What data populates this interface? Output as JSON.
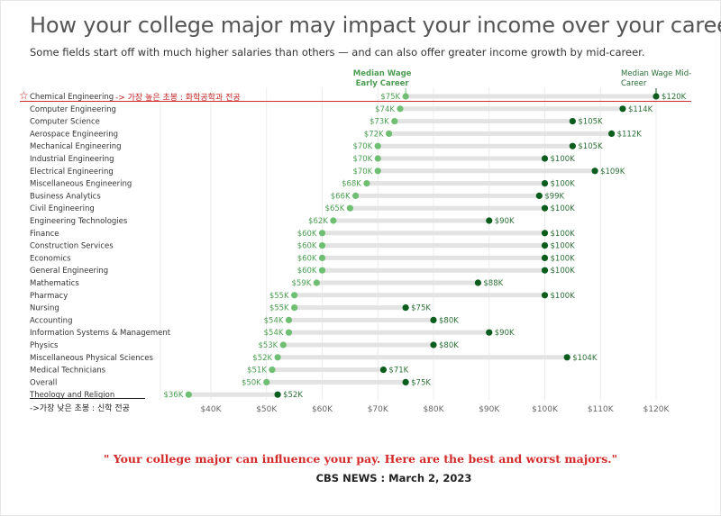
{
  "title": "How your college major may impact your income over your career",
  "subtitle": "Some fields start off with much higher salaries than others — and can also offer greater income growth by mid-career.",
  "legend": {
    "early_line1": "Median Wage",
    "early_line2": "Early Career",
    "mid_line1": "Median Wage Mid-",
    "mid_line2": "Career"
  },
  "annotations": {
    "top": "-> 가장 높은 초봉 : 화학공학과 전공",
    "bottom": "->가장 낮은 초봉 : 신학 전공",
    "star": "☆"
  },
  "headline": "\" Your college major can influence your pay. Here are the best and worst majors.\"",
  "source": "CBS NEWS : March 2, 2023",
  "colors": {
    "early": "#6fbf73",
    "mid": "#0b5d1e",
    "early_label": "#4a9d50",
    "mid_label": "#2b6e36",
    "bar": "#e3e3e3",
    "highlight": "#d03030"
  },
  "chart_data": {
    "type": "dumbbell",
    "x_ticks": [
      "$40K",
      "$50K",
      "$60K",
      "$70K",
      "$80K",
      "$90K",
      "$100K",
      "$110K",
      "$120K"
    ],
    "xlim": [
      40,
      120
    ],
    "unit": "thousands USD",
    "grid": true,
    "series": [
      {
        "name": "Median Wage Early Career"
      },
      {
        "name": "Median Wage Mid-Career"
      }
    ],
    "rows": [
      {
        "major": "Chemical Engineering",
        "early": 75,
        "mid": 120,
        "early_label": "$75K",
        "mid_label": "$120K"
      },
      {
        "major": "Computer Engineering",
        "early": 74,
        "mid": 114,
        "early_label": "$74K",
        "mid_label": "$114K"
      },
      {
        "major": "Computer Science",
        "early": 73,
        "mid": 105,
        "early_label": "$73K",
        "mid_label": "$105K"
      },
      {
        "major": "Aerospace Engineering",
        "early": 72,
        "mid": 112,
        "early_label": "$72K",
        "mid_label": "$112K"
      },
      {
        "major": "Mechanical Engineering",
        "early": 70,
        "mid": 105,
        "early_label": "$70K",
        "mid_label": "$105K"
      },
      {
        "major": "Industrial Engineering",
        "early": 70,
        "mid": 100,
        "early_label": "$70K",
        "mid_label": "$100K"
      },
      {
        "major": "Electrical Engineering",
        "early": 70,
        "mid": 109,
        "early_label": "$70K",
        "mid_label": "$109K"
      },
      {
        "major": "Miscellaneous Engineering",
        "early": 68,
        "mid": 100,
        "early_label": "$68K",
        "mid_label": "$100K"
      },
      {
        "major": "Business Analytics",
        "early": 66,
        "mid": 99,
        "early_label": "$66K",
        "mid_label": "$99K"
      },
      {
        "major": "Civil Engineering",
        "early": 65,
        "mid": 100,
        "early_label": "$65K",
        "mid_label": "$100K"
      },
      {
        "major": "Engineering Technologies",
        "early": 62,
        "mid": 90,
        "early_label": "$62K",
        "mid_label": "$90K"
      },
      {
        "major": "Finance",
        "early": 60,
        "mid": 100,
        "early_label": "$60K",
        "mid_label": "$100K"
      },
      {
        "major": "Construction Services",
        "early": 60,
        "mid": 100,
        "early_label": "$60K",
        "mid_label": "$100K"
      },
      {
        "major": "Economics",
        "early": 60,
        "mid": 100,
        "early_label": "$60K",
        "mid_label": "$100K"
      },
      {
        "major": "General Engineering",
        "early": 60,
        "mid": 100,
        "early_label": "$60K",
        "mid_label": "$100K"
      },
      {
        "major": "Mathematics",
        "early": 59,
        "mid": 88,
        "early_label": "$59K",
        "mid_label": "$88K"
      },
      {
        "major": "Pharmacy",
        "early": 55,
        "mid": 100,
        "early_label": "$55K",
        "mid_label": "$100K"
      },
      {
        "major": "Nursing",
        "early": 55,
        "mid": 75,
        "early_label": "$55K",
        "mid_label": "$75K"
      },
      {
        "major": "Accounting",
        "early": 54,
        "mid": 80,
        "early_label": "$54K",
        "mid_label": "$80K"
      },
      {
        "major": "Information Systems & Management",
        "early": 54,
        "mid": 90,
        "early_label": "$54K",
        "mid_label": "$90K"
      },
      {
        "major": "Physics",
        "early": 53,
        "mid": 80,
        "early_label": "$53K",
        "mid_label": "$80K"
      },
      {
        "major": "Miscellaneous Physical Sciences",
        "early": 52,
        "mid": 104,
        "early_label": "$52K",
        "mid_label": "$104K"
      },
      {
        "major": "Medical Technicians",
        "early": 51,
        "mid": 71,
        "early_label": "$51K",
        "mid_label": "$71K"
      },
      {
        "major": "Overall",
        "early": 50,
        "mid": 75,
        "early_label": "$50K",
        "mid_label": "$75K"
      },
      {
        "major": "Theology and Religion",
        "early": 36,
        "mid": 52,
        "early_label": "$36K",
        "mid_label": "$52K"
      }
    ]
  }
}
